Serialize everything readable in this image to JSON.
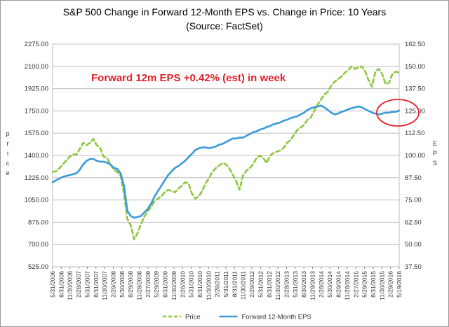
{
  "chart_data": {
    "type": "line",
    "title": "S&P 500 Change in Forward 12-Month EPS vs. Change in Price: 10 Years",
    "subtitle": "(Source: FactSet)",
    "ylabel": "Price",
    "y2label": "EPS",
    "ylim": [
      525,
      2275
    ],
    "y2lim": [
      37.5,
      162.5
    ],
    "y_ticks": [
      "525.00",
      "700.00",
      "875.00",
      "1050.00",
      "1225.00",
      "1400.00",
      "1575.00",
      "1750.00",
      "1925.00",
      "2100.00",
      "2275.00"
    ],
    "y2_ticks": [
      "37.50",
      "50.00",
      "62.50",
      "75.00",
      "87.50",
      "100.00",
      "112.50",
      "125.00",
      "137.50",
      "150.00",
      "162.50"
    ],
    "x_tick_labels": [
      "5/31/2006",
      "8/31/2006",
      "11/30/2006",
      "2/28/2007",
      "5/31/2007",
      "8/31/2007",
      "11/30/2007",
      "2/29/2008",
      "5/30/2008",
      "8/29/2008",
      "11/28/2008",
      "2/27/2009",
      "5/29/2009",
      "8/31/2009",
      "11/30/2009",
      "2/26/2010",
      "5/31/2010",
      "8/31/2010",
      "11/30/2010",
      "2/28/2011",
      "5/31/2011",
      "8/31/2011",
      "11/30/2011",
      "2/29/2012",
      "5/31/2012",
      "8/31/2012",
      "11/30/2012",
      "2/28/2013",
      "5/31/2013",
      "8/30/2013",
      "11/29/2013",
      "2/28/2014",
      "5/30/2014",
      "8/29/2014",
      "11/28/2014",
      "2/27/2015",
      "5/29/2015",
      "8/31/2015",
      "11/30/2015",
      "2/29/2016",
      "5/19/2016"
    ],
    "annotation": "Forward 12m EPS +0.42% (est) in week",
    "grid": "horizontal",
    "legend_position": "bottom",
    "series": [
      {
        "name": "Price",
        "axis": "left",
        "color": "#8dc63f",
        "style": "dashed",
        "values": [
          1270,
          1275,
          1300,
          1330,
          1360,
          1390,
          1410,
          1405,
          1450,
          1500,
          1480,
          1500,
          1530,
          1480,
          1460,
          1390,
          1380,
          1330,
          1290,
          1270,
          1240,
          1100,
          900,
          850,
          740,
          790,
          860,
          920,
          960,
          1000,
          1040,
          1060,
          1080,
          1110,
          1130,
          1120,
          1110,
          1140,
          1160,
          1190,
          1180,
          1100,
          1060,
          1080,
          1120,
          1180,
          1220,
          1270,
          1300,
          1320,
          1340,
          1330,
          1300,
          1250,
          1200,
          1130,
          1240,
          1280,
          1300,
          1330,
          1380,
          1400,
          1380,
          1340,
          1400,
          1420,
          1430,
          1440,
          1460,
          1500,
          1520,
          1560,
          1600,
          1620,
          1640,
          1680,
          1700,
          1750,
          1800,
          1840,
          1880,
          1900,
          1950,
          1980,
          2000,
          2020,
          2050,
          2070,
          2100,
          2080,
          2090,
          2100,
          2060,
          1990,
          1940,
          2060,
          2080,
          2040,
          1960,
          1970,
          2040,
          2060,
          2050
        ]
      },
      {
        "name": "Forward 12-Month EPS",
        "axis": "right",
        "color": "#3a9ad9",
        "style": "solid",
        "values": [
          85,
          86,
          87,
          88,
          88.5,
          89,
          89.5,
          90,
          92,
          95,
          97,
          98,
          98,
          97,
          96.5,
          96.5,
          96,
          95,
          93,
          92.5,
          90,
          83,
          69,
          66,
          65,
          65.5,
          66,
          68,
          70,
          73,
          77,
          80,
          83,
          86,
          89,
          91,
          93,
          94,
          95.5,
          97,
          99,
          101,
          103,
          104,
          104.5,
          104.5,
          104,
          104.5,
          105,
          106,
          106.5,
          107.5,
          108.5,
          109.5,
          109.5,
          110,
          110,
          111,
          112,
          113,
          113.5,
          114.5,
          115,
          116,
          116.5,
          117.5,
          118,
          118.5,
          119.5,
          120,
          121,
          121.5,
          122,
          123,
          124,
          125.5,
          126.5,
          127,
          127.5,
          128,
          127,
          125.5,
          124,
          123,
          123.5,
          124.5,
          125,
          126,
          126.5,
          127,
          127.5,
          127,
          126,
          125,
          124,
          123.5,
          123,
          123.5,
          124,
          124,
          124.5,
          124.5,
          125.2
        ]
      }
    ]
  }
}
